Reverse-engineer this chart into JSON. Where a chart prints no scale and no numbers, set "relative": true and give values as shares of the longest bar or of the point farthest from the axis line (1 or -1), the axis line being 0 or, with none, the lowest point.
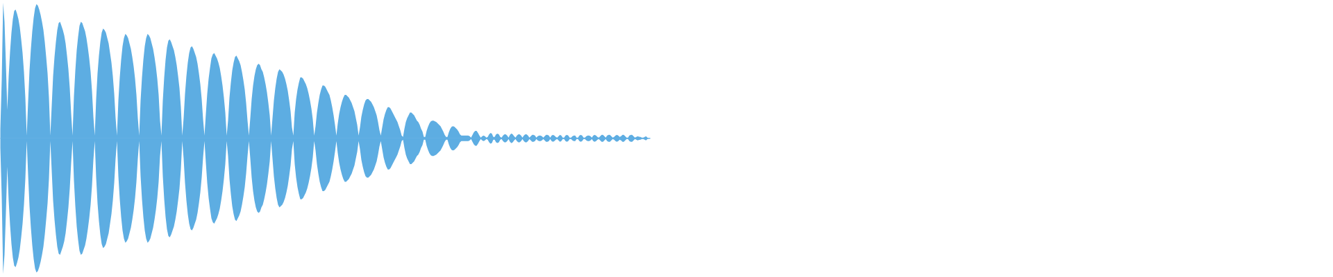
{
  "chart_data": {
    "type": "area",
    "relative": true,
    "ref_lines": [
      {
        "axis": "y",
        "value": 0,
        "color": "#5dade2"
      }
    ],
    "categories": [
      null,
      null,
      null,
      null,
      null,
      null,
      null,
      null,
      null,
      null,
      null,
      null,
      null,
      null,
      null,
      null,
      null,
      null,
      null,
      null,
      null,
      null,
      null,
      null,
      null,
      null,
      null,
      null,
      null,
      null,
      null,
      null,
      null,
      null,
      null,
      null,
      null,
      null,
      null,
      null,
      null,
      null,
      null,
      null,
      null,
      null,
      null,
      null,
      null,
      null,
      null,
      null,
      null,
      null,
      null,
      null,
      null,
      null,
      null,
      null,
      null,
      null,
      null,
      null,
      null,
      null,
      null,
      null,
      null,
      null,
      null,
      null,
      null,
      null,
      null,
      null,
      null,
      null,
      null,
      null,
      null,
      null,
      null,
      null,
      null,
      null,
      null,
      null,
      null,
      null,
      null,
      null,
      null,
      null,
      null,
      null,
      null,
      null,
      null,
      null,
      null,
      null,
      null,
      null,
      null,
      null,
      null,
      null,
      null,
      null,
      null,
      null,
      null,
      null,
      null,
      null,
      null,
      null,
      null,
      null,
      null,
      null,
      null,
      null,
      null,
      null,
      null,
      null,
      null,
      null,
      null,
      null,
      null,
      null,
      null,
      null,
      null,
      null,
      null,
      null,
      null,
      null,
      null,
      null,
      null,
      null,
      null,
      null,
      null,
      null,
      null,
      null,
      null,
      null,
      null,
      null,
      null,
      null,
      null,
      null,
      null,
      null,
      null,
      null,
      null,
      null,
      null,
      null,
      null,
      null,
      null,
      null,
      null,
      null,
      null,
      null,
      null,
      null,
      null,
      null,
      null,
      null,
      null,
      null,
      null,
      null,
      null,
      null,
      null,
      null,
      null,
      null,
      null,
      null,
      null,
      null,
      null,
      null,
      null,
      null,
      null,
      null,
      null,
      null,
      null,
      null,
      null,
      null,
      null,
      null,
      null,
      null,
      null,
      null,
      null,
      null,
      null,
      null,
      null,
      null,
      null,
      null,
      null,
      null,
      null,
      null,
      null,
      null,
      null,
      null,
      null,
      null,
      null,
      null,
      null,
      null,
      null,
      null,
      null,
      null,
      null,
      null,
      null,
      null,
      null,
      null,
      null,
      null,
      null,
      null,
      null,
      null,
      null,
      null,
      null,
      null,
      null,
      null,
      null,
      null,
      null,
      null,
      null,
      null,
      null,
      null,
      null,
      null,
      null,
      null,
      null,
      null,
      null,
      null,
      null,
      null,
      null,
      null,
      null,
      null,
      null,
      null,
      null,
      null,
      null,
      null,
      null,
      null,
      null,
      null,
      null,
      null,
      null,
      null,
      null,
      null,
      null,
      null,
      null,
      null,
      null,
      null,
      null,
      null,
      null,
      null,
      null,
      null,
      null,
      null,
      null,
      null,
      null,
      null,
      null,
      null,
      null,
      null,
      null,
      null,
      null,
      null,
      null,
      null,
      null,
      null,
      null,
      null,
      null,
      null,
      null,
      null,
      null,
      null,
      null,
      null,
      null,
      null,
      null,
      null,
      null,
      null,
      null,
      null,
      null,
      null,
      null,
      null,
      null,
      null,
      null,
      null,
      null,
      null,
      null,
      null,
      null,
      null,
      null,
      null,
      null,
      null,
      null,
      null,
      null,
      null,
      null,
      null,
      null,
      null,
      null,
      null,
      null,
      null,
      null,
      null,
      null,
      null,
      null,
      null,
      null,
      null,
      null,
      null,
      null,
      null,
      null,
      null,
      null,
      null,
      null,
      null,
      null,
      null,
      null,
      null,
      null,
      null,
      null,
      null,
      null,
      null,
      null,
      null,
      null,
      null,
      null,
      null,
      null,
      null,
      null,
      null,
      null,
      null,
      null,
      null,
      null,
      null,
      null,
      null,
      null,
      null,
      null,
      null,
      null,
      null,
      null,
      null,
      null,
      null,
      null,
      null,
      null,
      null,
      null,
      null,
      null,
      null,
      null,
      null,
      null,
      null,
      null,
      null,
      null,
      null,
      null,
      null,
      null,
      null,
      null,
      null,
      null,
      null,
      null,
      null,
      null,
      null,
      null,
      null,
      null,
      null,
      null,
      null,
      null,
      null,
      null,
      null,
      null
    ],
    "series": [
      {
        "color": "#5dade2",
        "values": [
          0.07,
          0.43,
          1.0,
          0.86,
          0.55,
          0.21,
          0.46,
          0.64,
          0.78,
          0.88,
          0.94,
          0.95,
          0.92,
          0.88,
          0.82,
          0.73,
          0.63,
          0.49,
          0.3,
          0.02,
          0.27,
          0.5,
          0.66,
          0.79,
          0.89,
          0.96,
          0.99,
          0.98,
          0.95,
          0.91,
          0.86,
          0.8,
          0.71,
          0.6,
          0.48,
          0.3,
          0.02,
          0.24,
          0.46,
          0.6,
          0.71,
          0.8,
          0.85,
          0.86,
          0.83,
          0.8,
          0.76,
          0.7,
          0.61,
          0.51,
          0.37,
          0.18,
          0.02,
          0.31,
          0.5,
          0.65,
          0.75,
          0.83,
          0.86,
          0.85,
          0.82,
          0.79,
          0.74,
          0.67,
          0.59,
          0.49,
          0.35,
          0.16,
          0.02,
          0.29,
          0.48,
          0.61,
          0.71,
          0.78,
          0.81,
          0.8,
          0.78,
          0.74,
          0.7,
          0.63,
          0.56,
          0.46,
          0.33,
          0.15,
          0.02,
          0.28,
          0.45,
          0.58,
          0.68,
          0.74,
          0.77,
          0.76,
          0.74,
          0.7,
          0.66,
          0.6,
          0.53,
          0.44,
          0.32,
          0.15,
          0.02,
          0.28,
          0.45,
          0.58,
          0.68,
          0.74,
          0.77,
          0.76,
          0.74,
          0.7,
          0.66,
          0.6,
          0.53,
          0.44,
          0.32,
          0.13,
          0.02,
          0.28,
          0.45,
          0.58,
          0.67,
          0.72,
          0.73,
          0.71,
          0.68,
          0.65,
          0.6,
          0.54,
          0.46,
          0.37,
          0.23,
          0.02,
          0.15,
          0.33,
          0.46,
          0.56,
          0.63,
          0.67,
          0.68,
          0.66,
          0.63,
          0.6,
          0.55,
          0.48,
          0.4,
          0.29,
          0.14,
          0.02,
          0.18,
          0.33,
          0.44,
          0.52,
          0.59,
          0.62,
          0.63,
          0.61,
          0.59,
          0.56,
          0.52,
          0.46,
          0.39,
          0.3,
          0.19,
          0.02,
          0.13,
          0.3,
          0.41,
          0.5,
          0.56,
          0.6,
          0.61,
          0.59,
          0.57,
          0.54,
          0.49,
          0.43,
          0.36,
          0.26,
          0.13,
          0.02,
          0.15,
          0.29,
          0.39,
          0.46,
          0.51,
          0.54,
          0.55,
          0.54,
          0.51,
          0.49,
          0.45,
          0.4,
          0.34,
          0.26,
          0.17,
          0.02,
          0.15,
          0.28,
          0.37,
          0.44,
          0.49,
          0.51,
          0.5,
          0.49,
          0.47,
          0.44,
          0.4,
          0.35,
          0.28,
          0.2,
          0.08,
          0.02,
          0.19,
          0.29,
          0.36,
          0.41,
          0.45,
          0.45,
          0.44,
          0.42,
          0.4,
          0.37,
          0.33,
          0.28,
          0.22,
          0.14,
          0.02,
          0.09,
          0.19,
          0.26,
          0.32,
          0.36,
          0.39,
          0.39,
          0.38,
          0.36,
          0.34,
          0.32,
          0.28,
          0.23,
          0.17,
          0.1,
          0.02,
          0.11,
          0.18,
          0.23,
          0.27,
          0.3,
          0.32,
          0.32,
          0.31,
          0.3,
          0.28,
          0.26,
          0.23,
          0.2,
          0.15,
          0.1,
          0.02,
          0.08,
          0.16,
          0.21,
          0.25,
          0.28,
          0.29,
          0.29,
          0.28,
          0.27,
          0.25,
          0.23,
          0.2,
          0.17,
          0.12,
          0.06,
          0.02,
          0.08,
          0.14,
          0.18,
          0.21,
          0.23,
          0.23,
          0.22,
          0.2,
          0.18,
          0.16,
          0.14,
          0.12,
          0.09,
          0.06,
          0.02,
          0.01,
          0.07,
          0.12,
          0.15,
          0.17,
          0.19,
          0.19,
          0.18,
          0.17,
          0.15,
          0.13,
          0.12,
          0.1,
          0.07,
          0.05,
          0.01,
          0.01,
          0.055,
          0.085,
          0.11,
          0.125,
          0.13,
          0.13,
          0.125,
          0.12,
          0.11,
          0.1,
          0.09,
          0.07,
          0.05,
          0.025,
          0.01,
          0.01,
          0.045,
          0.07,
          0.085,
          0.09,
          0.085,
          0.075,
          0.065,
          0.05,
          0.03,
          0.02,
          0.02,
          0.02,
          0.02,
          0.02,
          0.02,
          0.015,
          0.005,
          0.025,
          0.045,
          0.055,
          0.055,
          0.04,
          0.02,
          0.005,
          0.015,
          0.02,
          0.015,
          0.005,
          0.01,
          0.03,
          0.04,
          0.035,
          0.01,
          0.01,
          0.03,
          0.035,
          0.03,
          0.01,
          0.005,
          0.02,
          0.03,
          0.03,
          0.02,
          0.005,
          0.025,
          0.036,
          0.03,
          0.015,
          0.005,
          0.02,
          0.03,
          0.03,
          0.02,
          0.005,
          0.02,
          0.03,
          0.03,
          0.02,
          0.005,
          0.015,
          0.025,
          0.025,
          0.02,
          0.005,
          0.015,
          0.02,
          0.02,
          0.015,
          0.005,
          0.015,
          0.025,
          0.025,
          0.02,
          0.005,
          0.02,
          0.025,
          0.02,
          0.01,
          0.005,
          0.015,
          0.025,
          0.02,
          0.005,
          0.005,
          0.02,
          0.025,
          0.02,
          0.005,
          0.005,
          0.015,
          0.02,
          0.02,
          0.005,
          0.005,
          0.02,
          0.025,
          0.02,
          0.005,
          0.005,
          0.015,
          0.02,
          0.02,
          0.015,
          0.005,
          0.02,
          0.025,
          0.02,
          0.01,
          0.005,
          0.015,
          0.025,
          0.025,
          0.015,
          0.005,
          0.02,
          0.025,
          0.025,
          0.015,
          0.005,
          0.01,
          0.02,
          0.025,
          0.02,
          0.01,
          0.015,
          0.025,
          0.025,
          0.015,
          0.005,
          0.005,
          0.02,
          0.025,
          0.025,
          0.015,
          0.005,
          0.01,
          0.015,
          0.012,
          0.01,
          0.005,
          0.005,
          0.01,
          0.015,
          0.005,
          0.003,
          0.003
        ]
      },
      {
        "color": "#5dade2",
        "values": [
          -0.07,
          -0.43,
          -1.0,
          -0.86,
          -0.55,
          -0.21,
          -0.46,
          -0.64,
          -0.78,
          -0.88,
          -0.94,
          -0.95,
          -0.92,
          -0.88,
          -0.82,
          -0.73,
          -0.63,
          -0.49,
          -0.3,
          -0.02,
          -0.27,
          -0.5,
          -0.66,
          -0.79,
          -0.89,
          -0.96,
          -0.99,
          -0.98,
          -0.95,
          -0.91,
          -0.86,
          -0.8,
          -0.71,
          -0.6,
          -0.48,
          -0.3,
          -0.02,
          -0.24,
          -0.46,
          -0.6,
          -0.71,
          -0.8,
          -0.85,
          -0.86,
          -0.83,
          -0.8,
          -0.76,
          -0.7,
          -0.61,
          -0.51,
          -0.37,
          -0.18,
          -0.02,
          -0.31,
          -0.5,
          -0.65,
          -0.75,
          -0.83,
          -0.86,
          -0.85,
          -0.82,
          -0.79,
          -0.74,
          -0.67,
          -0.59,
          -0.49,
          -0.35,
          -0.16,
          -0.02,
          -0.29,
          -0.48,
          -0.61,
          -0.71,
          -0.78,
          -0.81,
          -0.8,
          -0.78,
          -0.74,
          -0.7,
          -0.63,
          -0.56,
          -0.46,
          -0.33,
          -0.15,
          -0.02,
          -0.28,
          -0.45,
          -0.58,
          -0.68,
          -0.74,
          -0.77,
          -0.76,
          -0.74,
          -0.7,
          -0.66,
          -0.6,
          -0.53,
          -0.44,
          -0.32,
          -0.15,
          -0.02,
          -0.28,
          -0.45,
          -0.58,
          -0.68,
          -0.74,
          -0.77,
          -0.76,
          -0.74,
          -0.7,
          -0.66,
          -0.6,
          -0.53,
          -0.44,
          -0.32,
          -0.13,
          -0.02,
          -0.28,
          -0.45,
          -0.58,
          -0.67,
          -0.72,
          -0.73,
          -0.71,
          -0.68,
          -0.65,
          -0.6,
          -0.54,
          -0.46,
          -0.37,
          -0.23,
          -0.02,
          -0.15,
          -0.33,
          -0.46,
          -0.56,
          -0.63,
          -0.67,
          -0.68,
          -0.66,
          -0.63,
          -0.6,
          -0.55,
          -0.48,
          -0.4,
          -0.29,
          -0.14,
          -0.02,
          -0.18,
          -0.33,
          -0.44,
          -0.52,
          -0.59,
          -0.62,
          -0.63,
          -0.61,
          -0.59,
          -0.56,
          -0.52,
          -0.46,
          -0.39,
          -0.3,
          -0.19,
          -0.02,
          -0.13,
          -0.3,
          -0.41,
          -0.5,
          -0.56,
          -0.6,
          -0.61,
          -0.59,
          -0.57,
          -0.54,
          -0.49,
          -0.43,
          -0.36,
          -0.26,
          -0.13,
          -0.02,
          -0.15,
          -0.29,
          -0.39,
          -0.46,
          -0.51,
          -0.54,
          -0.55,
          -0.54,
          -0.51,
          -0.49,
          -0.45,
          -0.4,
          -0.34,
          -0.26,
          -0.17,
          -0.02,
          -0.15,
          -0.28,
          -0.37,
          -0.44,
          -0.49,
          -0.51,
          -0.5,
          -0.49,
          -0.47,
          -0.44,
          -0.4,
          -0.35,
          -0.28,
          -0.2,
          -0.08,
          -0.02,
          -0.19,
          -0.29,
          -0.36,
          -0.41,
          -0.45,
          -0.45,
          -0.44,
          -0.42,
          -0.4,
          -0.37,
          -0.33,
          -0.28,
          -0.22,
          -0.14,
          -0.02,
          -0.09,
          -0.19,
          -0.26,
          -0.32,
          -0.36,
          -0.39,
          -0.39,
          -0.38,
          -0.36,
          -0.34,
          -0.32,
          -0.28,
          -0.23,
          -0.17,
          -0.1,
          -0.02,
          -0.11,
          -0.18,
          -0.23,
          -0.27,
          -0.3,
          -0.32,
          -0.32,
          -0.31,
          -0.3,
          -0.28,
          -0.26,
          -0.23,
          -0.2,
          -0.15,
          -0.1,
          -0.02,
          -0.08,
          -0.16,
          -0.21,
          -0.25,
          -0.28,
          -0.29,
          -0.29,
          -0.28,
          -0.27,
          -0.25,
          -0.23,
          -0.2,
          -0.17,
          -0.12,
          -0.06,
          -0.02,
          -0.08,
          -0.14,
          -0.18,
          -0.21,
          -0.23,
          -0.23,
          -0.22,
          -0.2,
          -0.18,
          -0.16,
          -0.14,
          -0.12,
          -0.09,
          -0.06,
          -0.02,
          -0.01,
          -0.07,
          -0.12,
          -0.15,
          -0.17,
          -0.19,
          -0.19,
          -0.18,
          -0.17,
          -0.15,
          -0.13,
          -0.12,
          -0.1,
          -0.07,
          -0.05,
          -0.01,
          -0.01,
          -0.055,
          -0.085,
          -0.11,
          -0.125,
          -0.13,
          -0.13,
          -0.125,
          -0.12,
          -0.11,
          -0.1,
          -0.09,
          -0.07,
          -0.05,
          -0.025,
          -0.01,
          -0.01,
          -0.045,
          -0.07,
          -0.085,
          -0.09,
          -0.085,
          -0.075,
          -0.065,
          -0.05,
          -0.03,
          -0.02,
          -0.02,
          -0.02,
          -0.02,
          -0.02,
          -0.02,
          -0.015,
          -0.005,
          -0.025,
          -0.045,
          -0.055,
          -0.055,
          -0.04,
          -0.02,
          -0.005,
          -0.015,
          -0.02,
          -0.015,
          -0.005,
          -0.01,
          -0.03,
          -0.04,
          -0.035,
          -0.01,
          -0.01,
          -0.03,
          -0.035,
          -0.03,
          -0.01,
          -0.005,
          -0.02,
          -0.03,
          -0.03,
          -0.02,
          -0.005,
          -0.025,
          -0.036,
          -0.03,
          -0.015,
          -0.005,
          -0.02,
          -0.03,
          -0.03,
          -0.02,
          -0.005,
          -0.02,
          -0.03,
          -0.03,
          -0.02,
          -0.005,
          -0.015,
          -0.025,
          -0.025,
          -0.02,
          -0.005,
          -0.015,
          -0.02,
          -0.02,
          -0.015,
          -0.005,
          -0.015,
          -0.025,
          -0.025,
          -0.02,
          -0.005,
          -0.02,
          -0.025,
          -0.02,
          -0.01,
          -0.005,
          -0.015,
          -0.025,
          -0.02,
          -0.005,
          -0.005,
          -0.02,
          -0.025,
          -0.02,
          -0.005,
          -0.005,
          -0.015,
          -0.02,
          -0.02,
          -0.005,
          -0.005,
          -0.02,
          -0.025,
          -0.02,
          -0.005,
          -0.005,
          -0.015,
          -0.02,
          -0.02,
          -0.015,
          -0.005,
          -0.02,
          -0.025,
          -0.02,
          -0.01,
          -0.005,
          -0.015,
          -0.025,
          -0.025,
          -0.015,
          -0.005,
          -0.02,
          -0.025,
          -0.025,
          -0.015,
          -0.005,
          -0.01,
          -0.02,
          -0.025,
          -0.02,
          -0.01,
          -0.015,
          -0.025,
          -0.025,
          -0.015,
          -0.005,
          -0.005,
          -0.02,
          -0.025,
          -0.025,
          -0.015,
          -0.005,
          -0.01,
          -0.015,
          -0.012,
          -0.01,
          -0.005,
          -0.005,
          -0.01,
          -0.015,
          -0.005,
          -0.003,
          -0.003
        ]
      }
    ]
  }
}
